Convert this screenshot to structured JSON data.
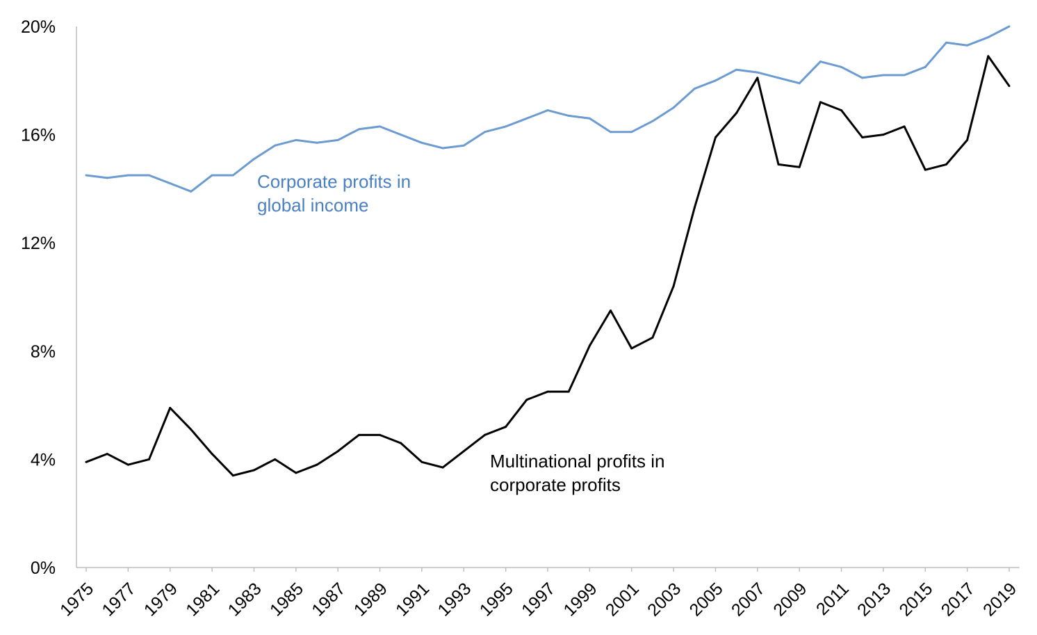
{
  "chart_data": {
    "type": "line",
    "title": "",
    "xlabel": "",
    "ylabel": "",
    "ylim": [
      0,
      20
    ],
    "yticks": [
      "0%",
      "4%",
      "8%",
      "12%",
      "16%",
      "20%"
    ],
    "ytick_values": [
      0,
      4,
      8,
      12,
      16,
      20
    ],
    "x": [
      1975,
      1976,
      1977,
      1978,
      1979,
      1980,
      1981,
      1982,
      1983,
      1984,
      1985,
      1986,
      1987,
      1988,
      1989,
      1990,
      1991,
      1992,
      1993,
      1994,
      1995,
      1996,
      1997,
      1998,
      1999,
      2000,
      2001,
      2002,
      2003,
      2004,
      2005,
      2006,
      2007,
      2008,
      2009,
      2010,
      2011,
      2012,
      2013,
      2014,
      2015,
      2016,
      2017,
      2018,
      2019
    ],
    "xtick_labels": [
      "1975",
      "1977",
      "1979",
      "1981",
      "1983",
      "1985",
      "1987",
      "1989",
      "1991",
      "1993",
      "1995",
      "1997",
      "1999",
      "2001",
      "2003",
      "2005",
      "2007",
      "2009",
      "2011",
      "2013",
      "2015",
      "2017",
      "2019"
    ],
    "xtick_values": [
      1975,
      1977,
      1979,
      1981,
      1983,
      1985,
      1987,
      1989,
      1991,
      1993,
      1995,
      1997,
      1999,
      2001,
      2003,
      2005,
      2007,
      2009,
      2011,
      2013,
      2015,
      2017,
      2019
    ],
    "grid": false,
    "series": [
      {
        "key": "corporate",
        "color": "#6b9bd1",
        "values": [
          14.5,
          14.4,
          14.5,
          14.5,
          14.2,
          13.9,
          14.5,
          14.5,
          15.1,
          15.6,
          15.8,
          15.7,
          15.8,
          16.2,
          16.3,
          16.0,
          15.7,
          15.5,
          15.6,
          16.1,
          16.3,
          16.6,
          16.9,
          16.7,
          16.6,
          16.1,
          16.1,
          16.5,
          17.0,
          17.7,
          18.0,
          18.4,
          18.3,
          18.1,
          17.9,
          18.7,
          18.5,
          18.1,
          18.2,
          18.2,
          18.5,
          19.4,
          19.3,
          19.6,
          20.0
        ]
      },
      {
        "key": "multinational",
        "color": "#000000",
        "values": [
          3.9,
          4.2,
          3.8,
          4.0,
          5.9,
          5.1,
          4.2,
          3.4,
          3.6,
          4.0,
          3.5,
          3.8,
          4.3,
          4.9,
          4.9,
          4.6,
          3.9,
          3.7,
          4.3,
          4.9,
          5.2,
          6.2,
          6.5,
          6.5,
          8.2,
          9.5,
          8.1,
          8.5,
          10.4,
          13.3,
          15.9,
          16.8,
          18.1,
          14.9,
          14.8,
          17.2,
          16.9,
          15.9,
          16.0,
          16.3,
          14.7,
          14.9,
          15.8,
          18.9,
          17.8
        ]
      }
    ],
    "annotations": [
      {
        "key": "corporate",
        "lines": [
          "Corporate profits in",
          "global income"
        ],
        "color": "#4a80c2"
      },
      {
        "key": "multinational",
        "lines": [
          "Multinational profits in",
          "corporate profits"
        ],
        "color": "#000000"
      }
    ]
  }
}
